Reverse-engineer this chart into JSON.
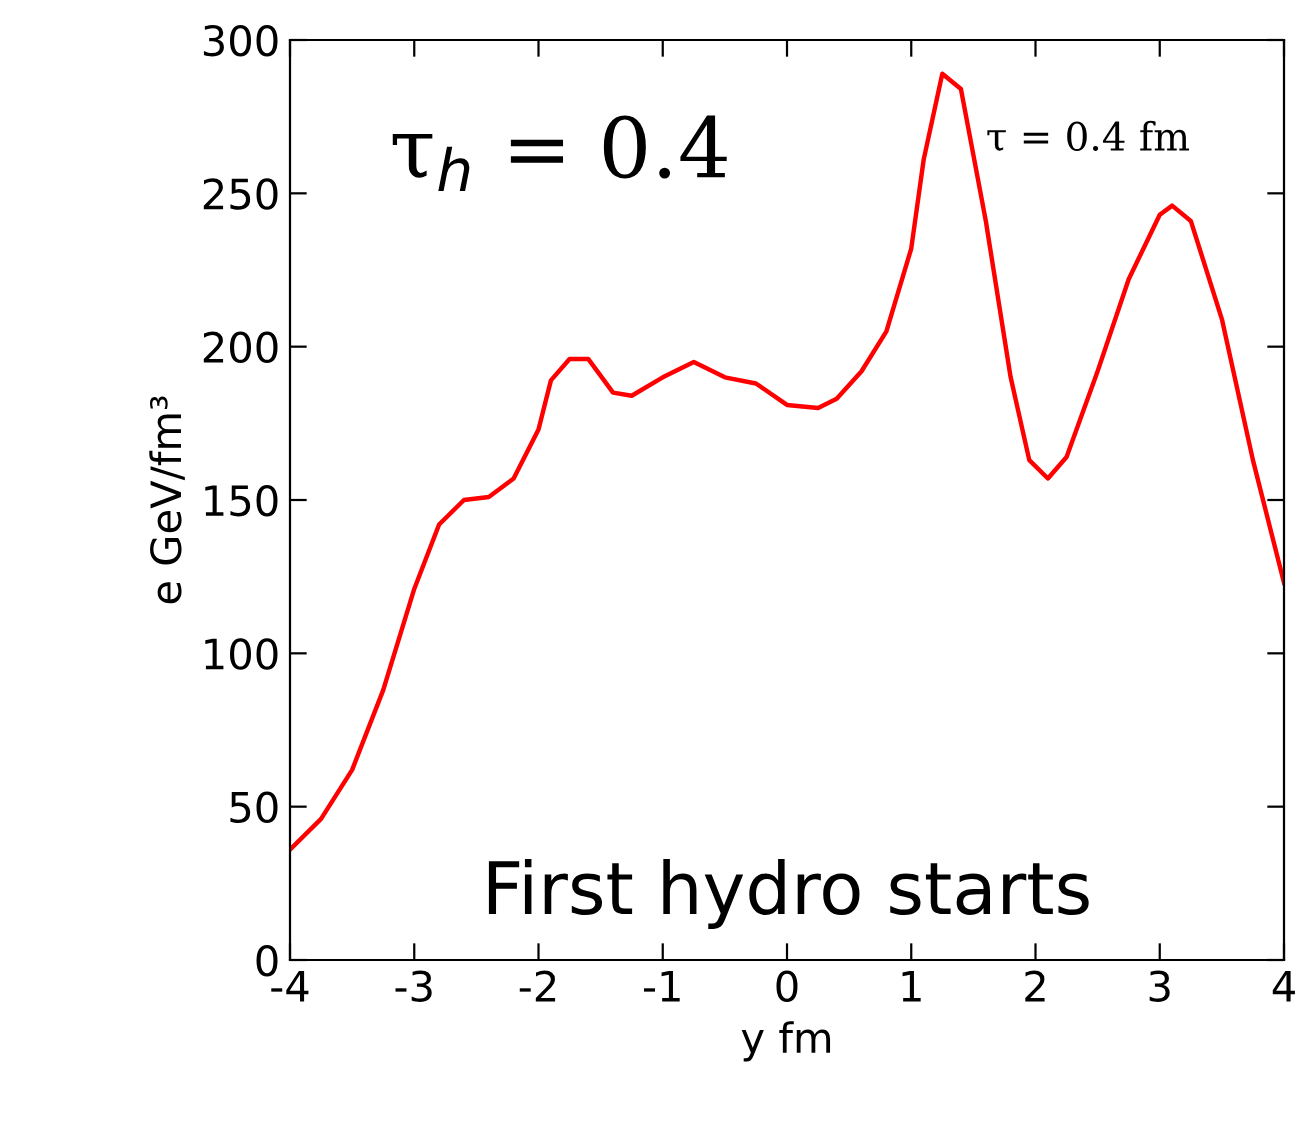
{
  "chart_data": {
    "type": "line",
    "xlabel": "y fm",
    "ylabel": "e GeV/fm³",
    "annotations": [
      "τ$_{h}$ = 0.4",
      "τ = 0.4 fm",
      "First hydro starts"
    ],
    "x": [
      -4,
      -3.75,
      -3.5,
      -3.25,
      -3,
      -2.8,
      -2.6,
      -2.4,
      -2.2,
      -2,
      -1.9,
      -1.75,
      -1.6,
      -1.4,
      -1.25,
      -1,
      -0.75,
      -0.5,
      -0.25,
      0,
      0.25,
      0.4,
      0.6,
      0.8,
      1,
      1.1,
      1.25,
      1.4,
      1.6,
      1.8,
      1.95,
      2.1,
      2.25,
      2.5,
      2.75,
      3,
      3.1,
      3.25,
      3.5,
      3.75,
      4
    ],
    "series": [
      {
        "color": "#ff0000",
        "values": [
          36,
          46,
          62,
          88,
          121,
          142,
          150,
          151,
          157,
          173,
          189,
          196,
          196,
          185,
          184,
          190,
          195,
          190,
          188,
          181,
          180,
          183,
          192,
          205,
          232,
          261,
          289,
          284,
          241,
          190,
          163,
          157,
          164,
          192,
          222,
          243,
          246,
          241,
          209,
          163,
          123
        ]
      }
    ],
    "xlim": [
      -4,
      4
    ],
    "xticks": [
      -4,
      -3,
      -2,
      -1,
      0,
      1,
      2,
      3,
      4
    ],
    "ylim": [
      0,
      300
    ],
    "yticks": [
      0,
      50,
      100,
      150,
      200,
      250,
      300
    ],
    "grid": false,
    "legend": false,
    "marker": "none",
    "line_style": "solid"
  }
}
